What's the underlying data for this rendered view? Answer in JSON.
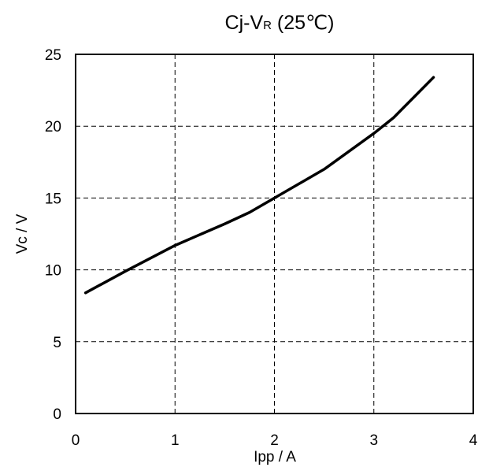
{
  "chart_data": {
    "type": "line",
    "title": "Cj-VR (25℃)",
    "title_parts": {
      "main": "Cj-V",
      "subscript": "R",
      "suffix": " (25℃)"
    },
    "xlabel": "Ipp / A",
    "ylabel": "Vc / V",
    "xlim": [
      0,
      4
    ],
    "ylim": [
      0,
      25
    ],
    "x_ticks": [
      0,
      1,
      2,
      3,
      4
    ],
    "y_ticks": [
      0,
      5,
      10,
      15,
      20,
      25
    ],
    "x_tick_labels": [
      "0",
      "1",
      "2",
      "3",
      "4"
    ],
    "y_tick_labels": [
      "0",
      "5",
      "10",
      "15",
      "20",
      "25"
    ],
    "grid": true,
    "legend": "none",
    "series": [
      {
        "color": "#000000",
        "x": [
          0.1,
          0.5,
          1.0,
          1.5,
          1.75,
          2.0,
          2.5,
          3.0,
          3.2,
          3.4,
          3.6
        ],
        "y": [
          8.4,
          9.9,
          11.7,
          13.2,
          14.0,
          15.0,
          17.0,
          19.5,
          20.6,
          22.0,
          23.4
        ]
      }
    ]
  }
}
